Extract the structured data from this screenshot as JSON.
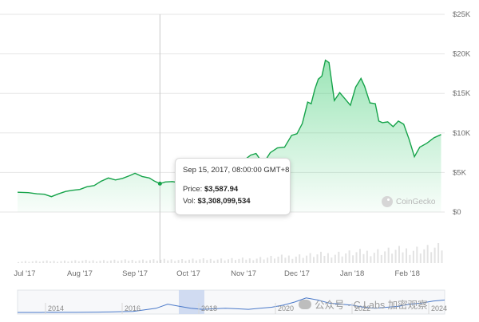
{
  "chart_data": {
    "type": "area",
    "title": "",
    "xlabel": "",
    "ylabel": "",
    "ylim": [
      0,
      25000
    ],
    "y_ticks": [
      {
        "value": 25000,
        "label": "$25K"
      },
      {
        "value": 20000,
        "label": "$20K"
      },
      {
        "value": 15000,
        "label": "$15K"
      },
      {
        "value": 10000,
        "label": "$10K"
      },
      {
        "value": 5000,
        "label": "$5K"
      },
      {
        "value": 0,
        "label": "$0"
      }
    ],
    "x_ticks": [
      {
        "date": "2017-07-01",
        "label": "Jul '17"
      },
      {
        "date": "2017-08-01",
        "label": "Aug '17"
      },
      {
        "date": "2017-09-01",
        "label": "Sep '17"
      },
      {
        "date": "2017-10-01",
        "label": "Oct '17"
      },
      {
        "date": "2017-11-01",
        "label": "Nov '17"
      },
      {
        "date": "2017-12-01",
        "label": "Dec '17"
      },
      {
        "date": "2018-01-01",
        "label": "Jan '18"
      },
      {
        "date": "2018-02-01",
        "label": "Feb '18"
      }
    ],
    "xlim": [
      "2017-06-27",
      "2018-02-22"
    ],
    "grid": true,
    "line_color": "#16a34a",
    "fill_color": "#22c55e",
    "series": [
      {
        "x": [
          "2017-06-27",
          "2017-07-03",
          "2017-07-08",
          "2017-07-12",
          "2017-07-16",
          "2017-07-20",
          "2017-07-24",
          "2017-07-28",
          "2017-08-01",
          "2017-08-05",
          "2017-08-09",
          "2017-08-13",
          "2017-08-17",
          "2017-08-21",
          "2017-08-25",
          "2017-08-29",
          "2017-09-01",
          "2017-09-05",
          "2017-09-09",
          "2017-09-12",
          "2017-09-15",
          "2017-09-18",
          "2017-09-22",
          "2017-09-26",
          "2017-09-30",
          "2017-10-04",
          "2017-10-08",
          "2017-10-12",
          "2017-10-16",
          "2017-10-20",
          "2017-10-24",
          "2017-10-28",
          "2017-11-01",
          "2017-11-05",
          "2017-11-08",
          "2017-11-12",
          "2017-11-16",
          "2017-11-20",
          "2017-11-24",
          "2017-11-28",
          "2017-12-01",
          "2017-12-04",
          "2017-12-07",
          "2017-12-09",
          "2017-12-11",
          "2017-12-13",
          "2017-12-15",
          "2017-12-17",
          "2017-12-19",
          "2017-12-22",
          "2017-12-25",
          "2017-12-28",
          "2017-12-31",
          "2018-01-03",
          "2018-01-06",
          "2018-01-08",
          "2018-01-11",
          "2018-01-14",
          "2018-01-16",
          "2018-01-18",
          "2018-01-21",
          "2018-01-24",
          "2018-01-27",
          "2018-01-30",
          "2018-02-02",
          "2018-02-05",
          "2018-02-08",
          "2018-02-12",
          "2018-02-16",
          "2018-02-20"
        ],
        "y": [
          2500,
          2450,
          2300,
          2250,
          1950,
          2300,
          2600,
          2750,
          2850,
          3200,
          3350,
          3900,
          4300,
          4050,
          4250,
          4600,
          4900,
          4500,
          4300,
          3900,
          3588,
          3800,
          3850,
          3700,
          4300,
          4200,
          4400,
          4800,
          5500,
          5700,
          5800,
          5800,
          6500,
          7200,
          7400,
          6100,
          7500,
          8100,
          8200,
          9700,
          9900,
          11200,
          13900,
          13700,
          15500,
          16800,
          17200,
          19200,
          18900,
          14100,
          15100,
          14300,
          13500,
          15800,
          16900,
          15900,
          13800,
          13700,
          11500,
          11300,
          11400,
          10800,
          11500,
          11100,
          9200,
          7000,
          8200,
          8700,
          9400,
          9800
        ]
      }
    ],
    "tooltip": {
      "date": "Sep 15, 2017, 08:00:00 GMT+8",
      "price_label": "Price:",
      "price_value": "$3,587.94",
      "vol_label": "Vol:",
      "vol_value": "$3,308,099,534",
      "date_value": "2017-09-15"
    },
    "navigator": {
      "labels": [
        "2014",
        "2016",
        "2018",
        "2020",
        "2022",
        "2024"
      ]
    }
  },
  "watermark": "CoinGecko",
  "caption": "公众号 · C Labs 加密观察"
}
